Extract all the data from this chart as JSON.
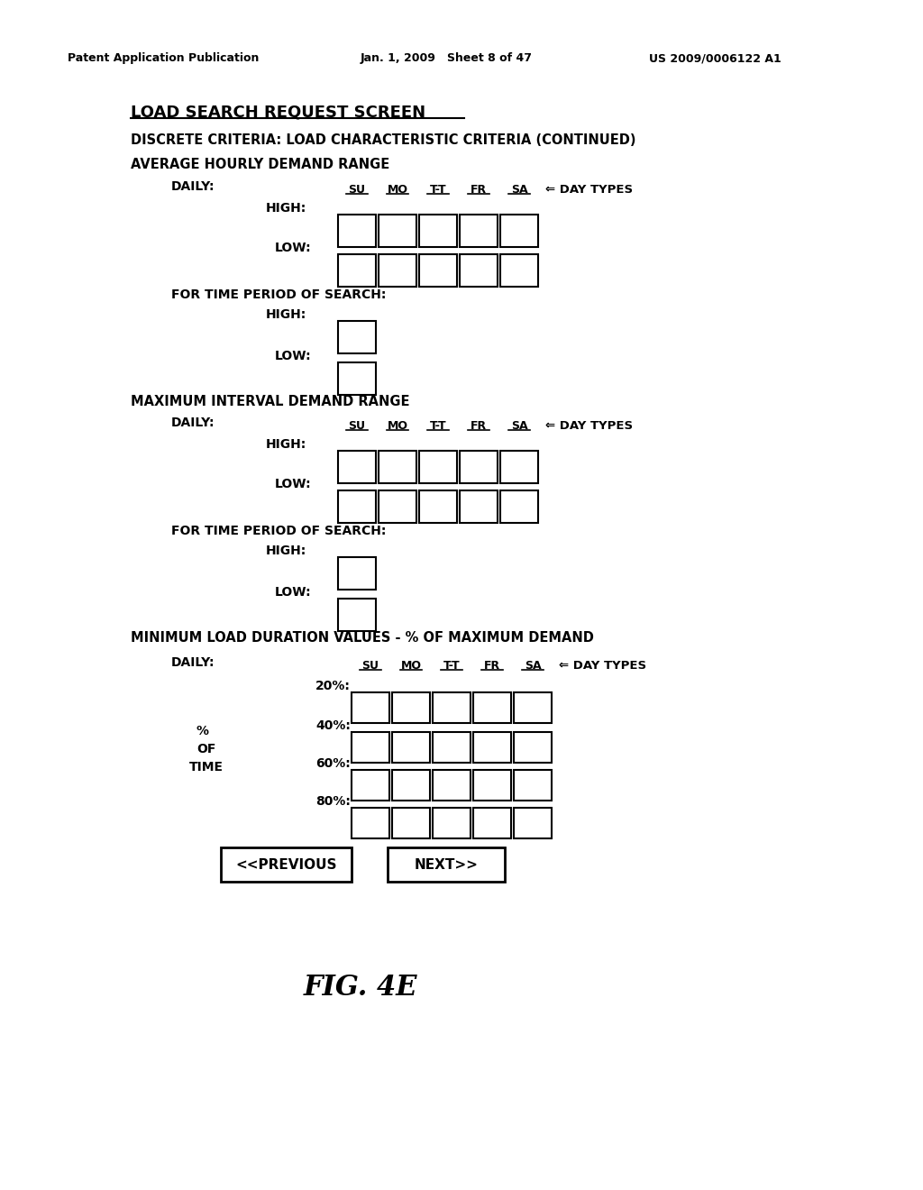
{
  "bg_color": "#ffffff",
  "header_left": "Patent Application Publication",
  "header_center": "Jan. 1, 2009   Sheet 8 of 47",
  "header_right": "US 2009/0006122 A1",
  "title": "LOAD SEARCH REQUEST SCREEN",
  "subtitle": "DISCRETE CRITERIA: LOAD CHARACTERISTIC CRITERIA (CONTINUED)",
  "section1_title": "AVERAGE HOURLY DEMAND RANGE",
  "section2_title": "MAXIMUM INTERVAL DEMAND RANGE",
  "section3_title": "MINIMUM LOAD DURATION VALUES - % OF MAXIMUM DEMAND",
  "day_labels": [
    "SU",
    "MO",
    "T-T",
    "FR",
    "SA"
  ],
  "day_types_label": "⇐ DAY TYPES",
  "for_time_label": "FOR TIME PERIOD OF SEARCH:",
  "footer": "FIG. 4E"
}
